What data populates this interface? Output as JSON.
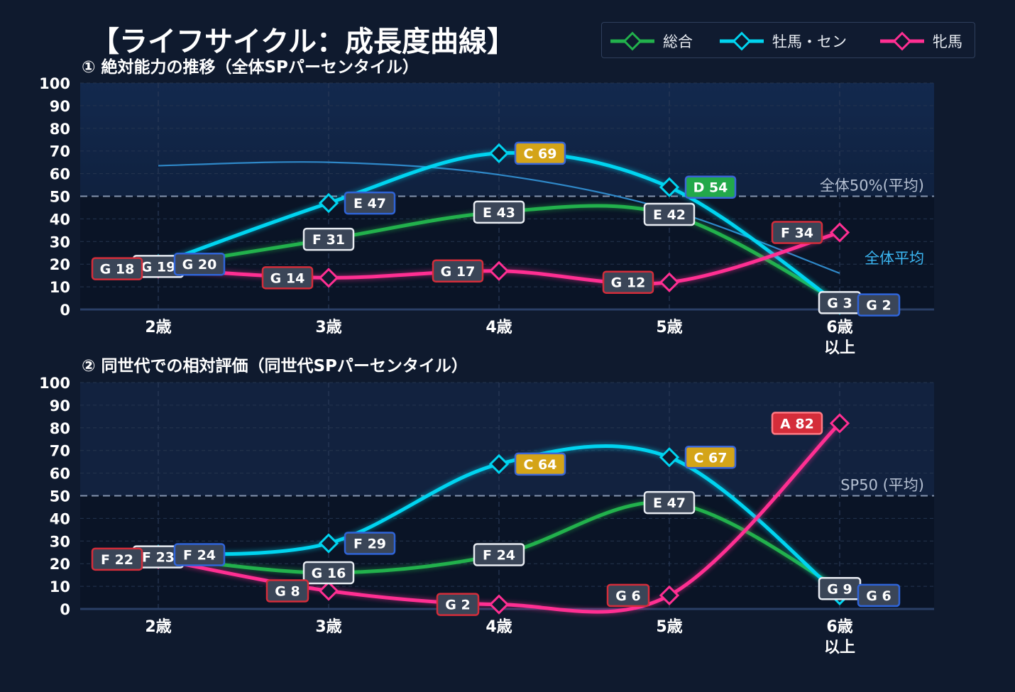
{
  "title": "【ライフサイクル：成長度曲線】",
  "legend": [
    {
      "name": "総合",
      "color": "#22b14c"
    },
    {
      "name": "牡馬・セン",
      "color": "#00d4f0"
    },
    {
      "name": "牝馬",
      "color": "#ff2f92"
    }
  ],
  "chart_data": [
    {
      "type": "line",
      "title": "① 絶対能力の推移（全体SPパーセンタイル）",
      "categories": [
        "2歳",
        "3歳",
        "4歳",
        "5歳",
        "6歳\n以上"
      ],
      "ylim": [
        0,
        100
      ],
      "yticks": [
        0,
        10,
        20,
        30,
        40,
        50,
        60,
        70,
        80,
        90,
        100
      ],
      "grid": true,
      "reference_line": {
        "value": 50,
        "label": "全体50%(平均)"
      },
      "average_curve": {
        "label": "全体平均",
        "values": [
          63.5,
          65,
          59.5,
          44,
          16
        ]
      },
      "series": [
        {
          "name": "総合",
          "values": [
            19,
            31,
            43,
            42,
            3
          ],
          "labels": [
            "G 19",
            "F 31",
            "E 43",
            "E 42",
            "G 3"
          ]
        },
        {
          "name": "牡馬・セン",
          "values": [
            20,
            47,
            69,
            54,
            2
          ],
          "labels": [
            "G 20",
            "E 47",
            "C 69",
            "D 54",
            "G 2"
          ]
        },
        {
          "name": "牝馬",
          "values": [
            18,
            14,
            17,
            12,
            34
          ],
          "labels": [
            "G 18",
            "G 14",
            "G 17",
            "G 12",
            "F 34"
          ]
        }
      ]
    },
    {
      "type": "line",
      "title": "② 同世代での相対評価（同世代SPパーセンタイル）",
      "categories": [
        "2歳",
        "3歳",
        "4歳",
        "5歳",
        "6歳\n以上"
      ],
      "ylim": [
        0,
        100
      ],
      "yticks": [
        0,
        10,
        20,
        30,
        40,
        50,
        60,
        70,
        80,
        90,
        100
      ],
      "grid": true,
      "reference_line": {
        "value": 50,
        "label": "SP50 (平均)"
      },
      "series": [
        {
          "name": "総合",
          "values": [
            23,
            16,
            24,
            47,
            9
          ],
          "labels": [
            "F 23",
            "G 16",
            "F 24",
            "E 47",
            "G 9"
          ]
        },
        {
          "name": "牡馬・セン",
          "values": [
            24,
            29,
            64,
            67,
            6
          ],
          "labels": [
            "F 24",
            "F 29",
            "C 64",
            "C 67",
            "G 6"
          ]
        },
        {
          "name": "牝馬",
          "values": [
            22,
            8,
            2,
            6,
            82
          ],
          "labels": [
            "F 22",
            "G 8",
            "G 2",
            "G 6",
            "A 82"
          ]
        }
      ]
    }
  ]
}
